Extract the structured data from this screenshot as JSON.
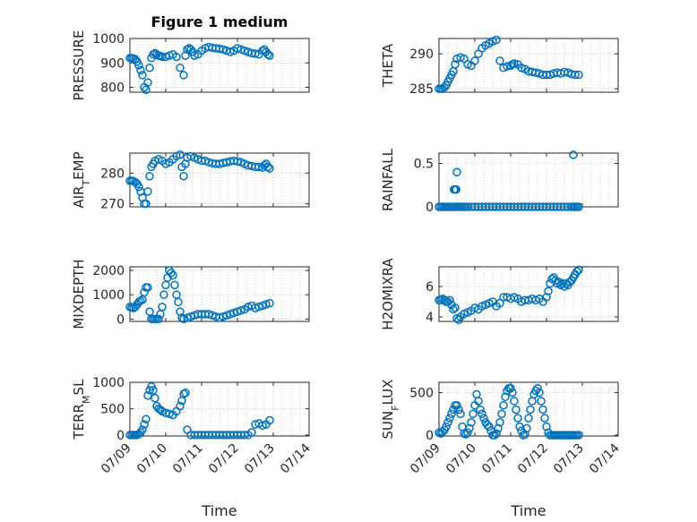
{
  "figure": {
    "title": "Figure 1 medium"
  },
  "chart_data": [
    {
      "type": "scatter",
      "title": "Figure 1 medium",
      "ylabel": "PRESSURE",
      "ylim": [
        780,
        1000
      ],
      "yticks": [
        800,
        900,
        1000
      ],
      "yticklabels": [
        "800",
        "900",
        "1000"
      ],
      "xlim": [
        0,
        5
      ],
      "xticks": [
        0,
        1,
        2,
        3,
        4,
        5
      ],
      "xticklabels": [
        "07/09",
        "07/10",
        "07/11",
        "07/12",
        "07/13",
        "07/14"
      ],
      "grid": true,
      "x": [
        0,
        0.05,
        0.1,
        0.15,
        0.2,
        0.25,
        0.3,
        0.35,
        0.4,
        0.45,
        0.5,
        0.55,
        0.6,
        0.65,
        0.7,
        0.75,
        0.8,
        0.85,
        0.9,
        1.0,
        1.1,
        1.2,
        1.3,
        1.4,
        1.5,
        1.55,
        1.6,
        1.65,
        1.7,
        1.75,
        1.8,
        1.9,
        2.0,
        2.1,
        2.2,
        2.3,
        2.4,
        2.5,
        2.6,
        2.7,
        2.8,
        2.9,
        3.0,
        3.1,
        3.2,
        3.3,
        3.4,
        3.5,
        3.6,
        3.7,
        3.75,
        3.8,
        3.85,
        3.9
      ],
      "y": [
        920,
        920,
        918,
        915,
        905,
        890,
        870,
        850,
        800,
        790,
        820,
        880,
        920,
        935,
        940,
        935,
        930,
        928,
        925,
        925,
        930,
        935,
        925,
        880,
        850,
        930,
        955,
        960,
        955,
        945,
        930,
        935,
        950,
        960,
        965,
        962,
        960,
        958,
        955,
        950,
        945,
        950,
        960,
        955,
        950,
        945,
        940,
        938,
        935,
        950,
        955,
        945,
        935,
        930
      ]
    },
    {
      "type": "scatter",
      "ylabel": "THETA",
      "ylim": [
        284.5,
        292.2
      ],
      "yticks": [
        285,
        290
      ],
      "yticklabels": [
        "285",
        "290"
      ],
      "xlim": [
        0,
        5
      ],
      "xticks": [
        0,
        1,
        2,
        3,
        4,
        5
      ],
      "xticklabels": [
        "07/09",
        "07/10",
        "07/11",
        "07/12",
        "07/13",
        "07/14"
      ],
      "grid": true,
      "x": [
        0,
        0.05,
        0.1,
        0.15,
        0.2,
        0.25,
        0.3,
        0.35,
        0.4,
        0.45,
        0.5,
        0.6,
        0.7,
        0.8,
        0.9,
        1.0,
        1.1,
        1.2,
        1.3,
        1.4,
        1.5,
        1.6,
        1.7,
        1.8,
        1.9,
        2.0,
        2.05,
        2.1,
        2.2,
        2.3,
        2.4,
        2.5,
        2.6,
        2.7,
        2.8,
        2.9,
        3.0,
        3.1,
        3.2,
        3.3,
        3.4,
        3.5,
        3.6,
        3.7,
        3.8,
        3.9
      ],
      "y": [
        285,
        285,
        285,
        285.2,
        285.5,
        286,
        286.5,
        287,
        287.5,
        288.5,
        289.3,
        289.5,
        289.3,
        288.5,
        288.3,
        289,
        290,
        290.8,
        291.2,
        291.5,
        291.8,
        292,
        289,
        288,
        288.2,
        288.3,
        288.5,
        288.6,
        288.5,
        288,
        287.8,
        287.5,
        287.4,
        287.3,
        287.2,
        287,
        287,
        287,
        287.2,
        287.3,
        287.2,
        287.4,
        287.3,
        287.1,
        287,
        287
      ]
    },
    {
      "type": "scatter",
      "ylabel": "AIR_TEMP",
      "ylim": [
        269,
        286.5
      ],
      "yticks": [
        270,
        280
      ],
      "yticklabels": [
        "270",
        "280"
      ],
      "xlim": [
        0,
        5
      ],
      "xticks": [
        0,
        1,
        2,
        3,
        4,
        5
      ],
      "xticklabels": [
        "07/09",
        "07/10",
        "07/11",
        "07/12",
        "07/13",
        "07/14"
      ],
      "grid": true,
      "x": [
        0,
        0.05,
        0.1,
        0.15,
        0.2,
        0.25,
        0.3,
        0.35,
        0.4,
        0.45,
        0.5,
        0.55,
        0.6,
        0.65,
        0.7,
        0.8,
        0.9,
        1.0,
        1.1,
        1.2,
        1.3,
        1.4,
        1.45,
        1.5,
        1.55,
        1.6,
        1.7,
        1.8,
        1.9,
        2.0,
        2.1,
        2.2,
        2.3,
        2.4,
        2.5,
        2.6,
        2.7,
        2.8,
        2.9,
        3.0,
        3.1,
        3.2,
        3.3,
        3.4,
        3.5,
        3.6,
        3.7,
        3.75,
        3.8,
        3.85,
        3.9
      ],
      "y": [
        277.5,
        277.5,
        277.4,
        277,
        276.5,
        275.5,
        274,
        272,
        270,
        270,
        274,
        279,
        282,
        283,
        284,
        284.5,
        284,
        283,
        283.5,
        284.5,
        285.5,
        286,
        282,
        279,
        283,
        285,
        285.5,
        285,
        284.5,
        284,
        284,
        283.5,
        283.2,
        283,
        283,
        283.3,
        283.5,
        283.8,
        284,
        283.8,
        283.5,
        283,
        282.5,
        282.3,
        282,
        282,
        281.8,
        282.5,
        283,
        282,
        281.5
      ]
    },
    {
      "type": "scatter",
      "ylabel": "RAINFALL",
      "ylim": [
        0,
        0.62
      ],
      "yticks": [
        0,
        0.5
      ],
      "yticklabels": [
        "0",
        "0.5"
      ],
      "xlim": [
        0,
        5
      ],
      "xticks": [
        0,
        1,
        2,
        3,
        4,
        5
      ],
      "xticklabels": [
        "07/09",
        "07/10",
        "07/11",
        "07/12",
        "07/13",
        "07/14"
      ],
      "grid": true,
      "x": [
        0,
        0.05,
        0.1,
        0.15,
        0.2,
        0.25,
        0.3,
        0.35,
        0.4,
        0.45,
        0.5,
        0.55,
        0.6,
        0.65,
        0.7,
        0.75,
        0.8,
        0.9,
        1.0,
        1.1,
        1.2,
        1.3,
        1.4,
        1.5,
        1.6,
        1.7,
        1.8,
        1.9,
        2.0,
        2.1,
        2.2,
        2.3,
        2.4,
        2.5,
        2.6,
        2.7,
        2.8,
        2.9,
        3.0,
        3.1,
        3.2,
        3.3,
        3.4,
        3.5,
        3.6,
        3.7,
        3.75,
        3.8,
        3.85,
        3.9,
        0.42,
        0.45,
        0.48,
        0.5,
        3.75
      ],
      "y": [
        0,
        0,
        0,
        0,
        0,
        0,
        0,
        0,
        0,
        0,
        0,
        0,
        0,
        0,
        0,
        0,
        0,
        0,
        0,
        0,
        0,
        0,
        0,
        0,
        0,
        0,
        0,
        0,
        0,
        0,
        0,
        0,
        0,
        0,
        0,
        0,
        0,
        0,
        0,
        0,
        0,
        0,
        0,
        0,
        0,
        0,
        0,
        0,
        0,
        0,
        0.2,
        0.2,
        0.2,
        0.4,
        0.6
      ]
    },
    {
      "type": "scatter",
      "ylabel": "MIXDEPTH",
      "ylim": [
        -100,
        2150
      ],
      "yticks": [
        0,
        1000,
        2000
      ],
      "yticklabels": [
        "0",
        "1000",
        "2000"
      ],
      "xlim": [
        0,
        5
      ],
      "xticks": [
        0,
        1,
        2,
        3,
        4,
        5
      ],
      "xticklabels": [
        "07/09",
        "07/10",
        "07/11",
        "07/12",
        "07/13",
        "07/14"
      ],
      "grid": true,
      "x": [
        0,
        0.05,
        0.1,
        0.15,
        0.2,
        0.25,
        0.3,
        0.35,
        0.4,
        0.45,
        0.5,
        0.55,
        0.6,
        0.65,
        0.7,
        0.75,
        0.8,
        0.85,
        0.9,
        0.95,
        1.0,
        1.05,
        1.1,
        1.15,
        1.2,
        1.25,
        1.3,
        1.35,
        1.4,
        1.45,
        1.5,
        1.6,
        1.7,
        1.8,
        1.9,
        2.0,
        2.1,
        2.2,
        2.3,
        2.4,
        2.5,
        2.6,
        2.7,
        2.8,
        2.9,
        3.0,
        3.1,
        3.2,
        3.3,
        3.4,
        3.5,
        3.6,
        3.7,
        3.8,
        3.9
      ],
      "y": [
        500,
        480,
        450,
        500,
        600,
        700,
        750,
        800,
        1100,
        1300,
        1300,
        300,
        0,
        0,
        0,
        0,
        0,
        200,
        500,
        1000,
        1400,
        1700,
        2000,
        1900,
        1800,
        1400,
        1000,
        700,
        300,
        50,
        0,
        50,
        100,
        150,
        200,
        200,
        200,
        200,
        150,
        100,
        50,
        100,
        150,
        200,
        250,
        300,
        350,
        400,
        500,
        550,
        450,
        500,
        550,
        600,
        650
      ]
    },
    {
      "type": "scatter",
      "ylabel": "H2OMIXRA",
      "ylim": [
        3.7,
        7.3
      ],
      "yticks": [
        4,
        6
      ],
      "yticklabels": [
        "4",
        "6"
      ],
      "xlim": [
        0,
        5
      ],
      "xticks": [
        0,
        1,
        2,
        3,
        4,
        5
      ],
      "xticklabels": [
        "07/09",
        "07/10",
        "07/11",
        "07/12",
        "07/13",
        "07/14"
      ],
      "grid": true,
      "x": [
        0,
        0.05,
        0.1,
        0.15,
        0.2,
        0.25,
        0.3,
        0.35,
        0.4,
        0.45,
        0.5,
        0.55,
        0.6,
        0.7,
        0.8,
        0.9,
        1.0,
        1.1,
        1.2,
        1.3,
        1.4,
        1.5,
        1.6,
        1.7,
        1.8,
        1.9,
        2.0,
        2.1,
        2.2,
        2.3,
        2.4,
        2.5,
        2.6,
        2.7,
        2.8,
        2.9,
        3.0,
        3.05,
        3.1,
        3.15,
        3.2,
        3.25,
        3.3,
        3.35,
        3.4,
        3.45,
        3.5,
        3.55,
        3.6,
        3.65,
        3.7,
        3.75,
        3.8,
        3.85,
        3.9
      ],
      "y": [
        5.1,
        5.1,
        5.2,
        5.1,
        5.0,
        5.0,
        5.1,
        4.8,
        4.5,
        4.6,
        3.9,
        3.8,
        4.0,
        4.2,
        4.3,
        4.4,
        4.6,
        4.5,
        4.7,
        4.8,
        4.9,
        5.0,
        4.7,
        4.9,
        5.3,
        5.3,
        5.2,
        5.3,
        5.2,
        5.0,
        5.1,
        5.1,
        5.2,
        5.1,
        5.2,
        5.0,
        5.3,
        5.7,
        6.2,
        6.5,
        6.6,
        6.4,
        6.2,
        6.3,
        6.1,
        6.2,
        6.0,
        6.2,
        6.1,
        6.3,
        6.4,
        6.6,
        6.8,
        7.0,
        7.1
      ]
    },
    {
      "type": "scatter",
      "ylabel": "TERR_MSL",
      "ylim": [
        -20,
        1000
      ],
      "yticks": [
        0,
        500,
        1000
      ],
      "yticklabels": [
        "0",
        "500",
        "1000"
      ],
      "xlim": [
        0,
        5
      ],
      "xticks": [
        0,
        1,
        2,
        3,
        4,
        5
      ],
      "xticklabels": [
        "07/09",
        "07/10",
        "07/11",
        "07/12",
        "07/13",
        "07/14"
      ],
      "grid": true,
      "x": [
        0,
        0.05,
        0.1,
        0.15,
        0.2,
        0.25,
        0.3,
        0.35,
        0.4,
        0.45,
        0.5,
        0.55,
        0.6,
        0.65,
        0.7,
        0.75,
        0.8,
        0.85,
        0.9,
        1.0,
        1.1,
        1.2,
        1.3,
        1.4,
        1.45,
        1.5,
        1.55,
        1.6,
        1.7,
        1.8,
        1.9,
        2.0,
        2.1,
        2.2,
        2.3,
        2.4,
        2.5,
        2.6,
        2.7,
        2.8,
        2.9,
        3.0,
        3.1,
        3.2,
        3.3,
        3.4,
        3.5,
        3.6,
        3.7,
        3.8,
        3.9
      ],
      "y": [
        0,
        0,
        0,
        0,
        0,
        20,
        50,
        100,
        200,
        300,
        750,
        850,
        920,
        850,
        700,
        550,
        500,
        480,
        450,
        420,
        400,
        380,
        450,
        550,
        650,
        780,
        800,
        100,
        0,
        0,
        0,
        0,
        0,
        0,
        0,
        0,
        0,
        0,
        0,
        0,
        0,
        0,
        0,
        0,
        0,
        50,
        200,
        220,
        180,
        200,
        280
      ]
    },
    {
      "type": "scatter",
      "ylabel": "SUN_FLUX",
      "ylim": [
        -10,
        620
      ],
      "yticks": [
        0,
        500
      ],
      "yticklabels": [
        "0",
        "500"
      ],
      "xlim": [
        0,
        5
      ],
      "xticks": [
        0,
        1,
        2,
        3,
        4,
        5
      ],
      "xticklabels": [
        "07/09",
        "07/10",
        "07/11",
        "07/12",
        "07/13",
        "07/14"
      ],
      "grid": true,
      "x": [
        0,
        0.05,
        0.1,
        0.15,
        0.2,
        0.25,
        0.3,
        0.35,
        0.4,
        0.45,
        0.5,
        0.55,
        0.6,
        0.65,
        0.7,
        0.75,
        0.8,
        0.85,
        0.9,
        0.95,
        1.0,
        1.05,
        1.1,
        1.15,
        1.2,
        1.25,
        1.3,
        1.35,
        1.4,
        1.45,
        1.5,
        1.55,
        1.6,
        1.65,
        1.7,
        1.75,
        1.8,
        1.85,
        1.9,
        1.95,
        2.0,
        2.05,
        2.1,
        2.15,
        2.2,
        2.25,
        2.3,
        2.35,
        2.4,
        2.45,
        2.5,
        2.55,
        2.6,
        2.65,
        2.7,
        2.75,
        2.8,
        2.85,
        2.9,
        2.95,
        3.0,
        3.05,
        3.1,
        3.15,
        3.2,
        3.25,
        3.3,
        3.35,
        3.4,
        3.45,
        3.5,
        3.55,
        3.6,
        3.65,
        3.7,
        3.75,
        3.8,
        3.85,
        3.9
      ],
      "y": [
        30,
        20,
        40,
        60,
        100,
        150,
        200,
        250,
        300,
        350,
        350,
        300,
        250,
        100,
        20,
        10,
        30,
        80,
        150,
        250,
        350,
        480,
        400,
        300,
        250,
        200,
        150,
        120,
        100,
        50,
        0,
        0,
        20,
        80,
        150,
        250,
        350,
        450,
        520,
        550,
        550,
        500,
        400,
        300,
        200,
        100,
        50,
        0,
        10,
        80,
        200,
        300,
        400,
        480,
        520,
        550,
        500,
        400,
        300,
        200,
        100,
        30,
        0,
        0,
        0,
        0,
        0,
        0,
        0,
        0,
        0,
        0,
        0,
        0,
        0,
        0,
        0,
        0,
        0
      ]
    }
  ],
  "axes": [
    {
      "ylabel_base": "PRESSURE",
      "ylabel_sub": ""
    },
    {
      "ylabel_base": "THETA",
      "ylabel_sub": ""
    },
    {
      "ylabel_base": "AIR",
      "ylabel_sub": "T",
      "ylabel_rest": "EMP"
    },
    {
      "ylabel_base": "RAINFALL",
      "ylabel_sub": ""
    },
    {
      "ylabel_base": "MIXDEPTH",
      "ylabel_sub": ""
    },
    {
      "ylabel_base": "H2OMIXRA",
      "ylabel_sub": ""
    },
    {
      "ylabel_base": "TERR",
      "ylabel_sub": "M",
      "ylabel_rest": "SL"
    },
    {
      "ylabel_base": "SUN",
      "ylabel_sub": "F",
      "ylabel_rest": "LUX"
    }
  ],
  "xlabel": "Time",
  "colors": {
    "marker": "#0072BD",
    "axis": "#262626"
  }
}
